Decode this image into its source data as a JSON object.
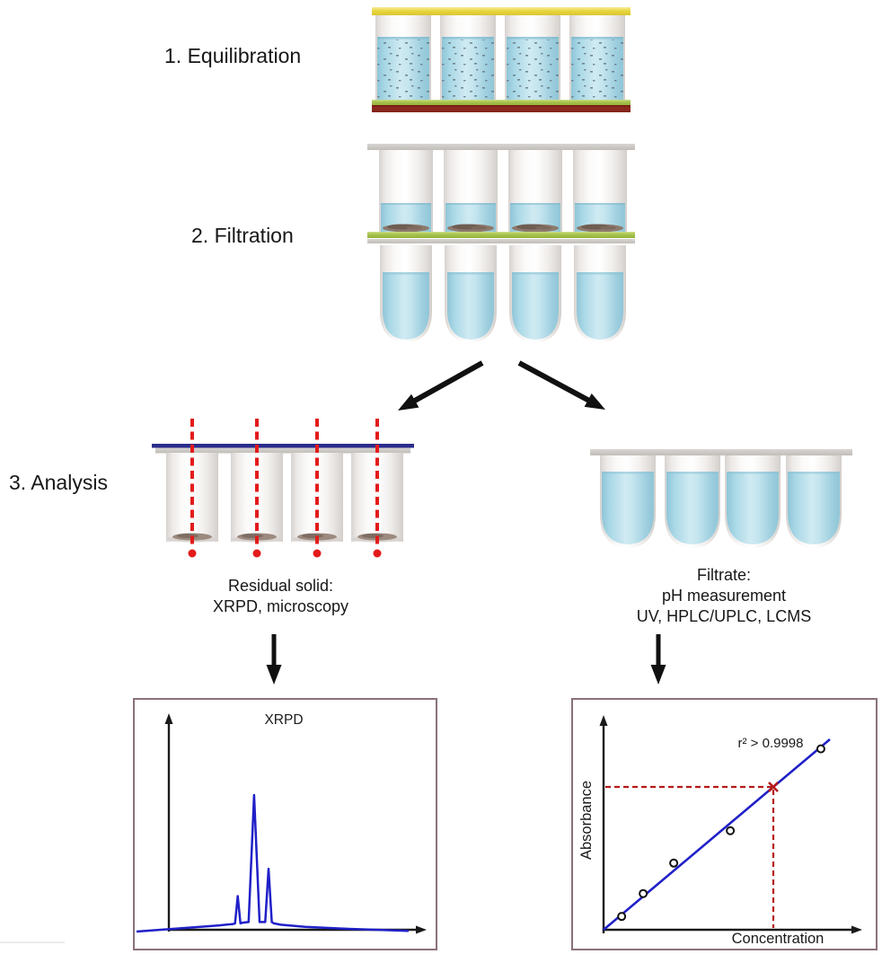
{
  "page": {
    "background": "#ffffff"
  },
  "steps": [
    {
      "label": "1. Equilibration"
    },
    {
      "label": "2. Filtration"
    },
    {
      "label": "3. Analysis"
    }
  ],
  "analysis_branches": {
    "residual_solid": {
      "caption_lines": [
        "Residual solid:",
        "XRPD, microscopy"
      ]
    },
    "filtrate": {
      "caption_lines": [
        "Filtrate:",
        "pH measurement",
        "UV, HPLC/UPLC, LCMS"
      ]
    }
  },
  "colors": {
    "suspension_liquid": "#a9d8e6",
    "filtrate_liquid": "#b7dfeb",
    "seal_top_yellow": "#e8d63f",
    "filter_green": "#a9c54e",
    "base_maroon": "#8e2b1e",
    "plate_gray": "#c8c4c0",
    "xrpd_beam_red": "#e31b1b",
    "plate_line_navy": "#2b2b8c",
    "chart_line_blue": "#2020c8",
    "chart_guide_red": "#b51a1a",
    "chart_box_border": "#8a717a"
  },
  "chart_data": [
    {
      "id": "xrpd-pattern",
      "type": "line",
      "title": "XRPD",
      "xlabel": "",
      "ylabel": "",
      "x_range": [
        0,
        100
      ],
      "y_range": [
        0,
        100
      ],
      "grid": false,
      "legend": false,
      "line_color": "#2020c8",
      "series": [
        {
          "name": "diffractogram",
          "x": [
            0,
            30,
            35.5,
            36.2,
            37.2,
            38.2,
            39,
            41.2,
            43.2,
            45.2,
            46.5,
            47.3,
            48.5,
            49.7,
            50.5,
            53,
            62,
            78,
            100
          ],
          "y": [
            0,
            4.5,
            5.5,
            6,
            26,
            6,
            6.5,
            7,
            100,
            7,
            7,
            7,
            46,
            7,
            6,
            5,
            3.5,
            2,
            0.5
          ]
        }
      ]
    },
    {
      "id": "calibration-curve",
      "type": "scatter",
      "title": "",
      "xlabel": "Concentration",
      "ylabel": "Absorbance",
      "annotation": "r² > 0.9998",
      "x_range": [
        0,
        100
      ],
      "y_range": [
        0,
        100
      ],
      "grid": false,
      "point_color": "#111111",
      "fit_line": {
        "x": [
          0,
          100
        ],
        "y": [
          0,
          100
        ],
        "color": "#2020c8"
      },
      "points": [
        [
          8,
          7
        ],
        [
          17.5,
          19
        ],
        [
          31,
          35
        ],
        [
          56,
          52
        ],
        [
          96,
          95
        ]
      ],
      "unknown_sample": {
        "x": 75,
        "y": 75,
        "marker": "x",
        "color": "#b51a1a",
        "dashed_guides": true
      }
    }
  ]
}
